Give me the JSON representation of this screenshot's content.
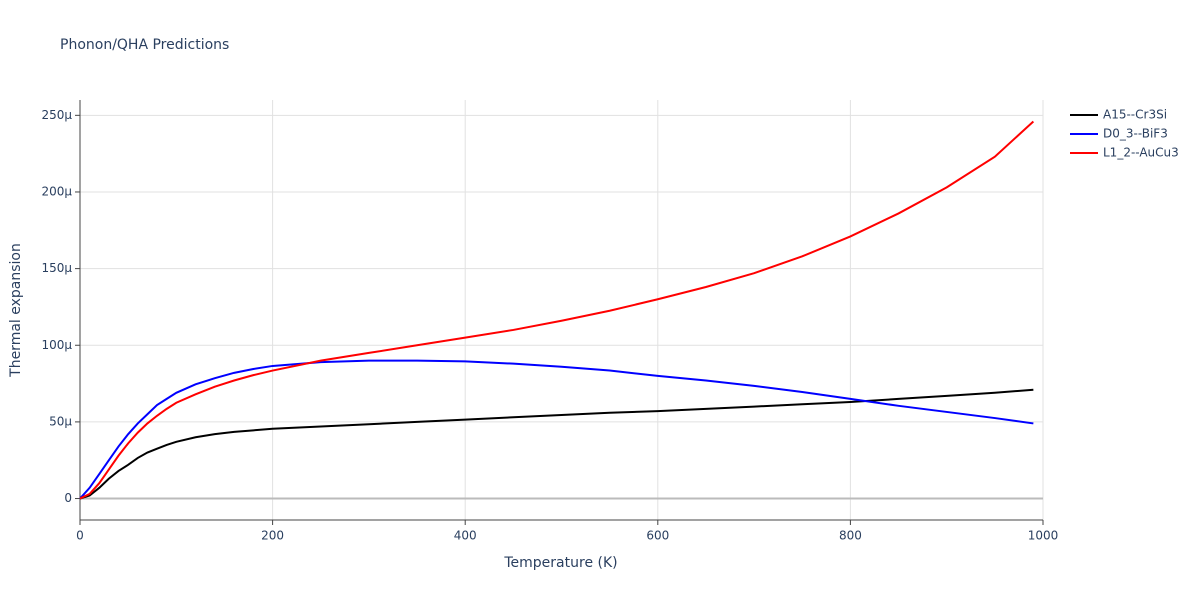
{
  "chart_data": {
    "type": "line",
    "title": "Phonon/QHA Predictions",
    "xlabel": "Temperature (K)",
    "ylabel": "Thermal expansion",
    "x": [
      0,
      10,
      20,
      30,
      40,
      50,
      60,
      70,
      80,
      90,
      100,
      120,
      140,
      160,
      180,
      200,
      250,
      300,
      350,
      400,
      450,
      500,
      550,
      600,
      650,
      700,
      750,
      800,
      850,
      900,
      950,
      990
    ],
    "series": [
      {
        "name": "A15--Cr3Si",
        "color": "#000000",
        "values": [
          0.0,
          2e-06,
          7e-06,
          1.3e-05,
          1.8e-05,
          2.2e-05,
          2.65e-05,
          3e-05,
          3.25e-05,
          3.5e-05,
          3.7e-05,
          4e-05,
          4.2e-05,
          4.35e-05,
          4.45e-05,
          4.55e-05,
          4.7e-05,
          4.85e-05,
          5e-05,
          5.15e-05,
          5.3e-05,
          5.45e-05,
          5.6e-05,
          5.7e-05,
          5.85e-05,
          6e-05,
          6.15e-05,
          6.3e-05,
          6.5e-05,
          6.7e-05,
          6.9e-05,
          7.1e-05
        ]
      },
      {
        "name": "D0_3--BiF3",
        "color": "#0000ff",
        "values": [
          0.0,
          7e-06,
          1.6e-05,
          2.5e-05,
          3.4e-05,
          4.2e-05,
          4.9e-05,
          5.5e-05,
          6.1e-05,
          6.5e-05,
          6.9e-05,
          7.45e-05,
          7.85e-05,
          8.2e-05,
          8.45e-05,
          8.65e-05,
          8.9e-05,
          9e-05,
          9e-05,
          8.95e-05,
          8.8e-05,
          8.6e-05,
          8.35e-05,
          8e-05,
          7.7e-05,
          7.35e-05,
          6.95e-05,
          6.5e-05,
          6.05e-05,
          5.65e-05,
          5.25e-05,
          4.9e-05
        ]
      },
      {
        "name": "L1_2--AuCu3",
        "color": "#ff0000",
        "values": [
          0.0,
          3e-06,
          1e-05,
          1.9e-05,
          2.8e-05,
          3.6e-05,
          4.3e-05,
          4.9e-05,
          5.4e-05,
          5.85e-05,
          6.25e-05,
          6.8e-05,
          7.3e-05,
          7.7e-05,
          8.05e-05,
          8.35e-05,
          9e-05,
          9.5e-05,
          0.0001,
          0.000105,
          0.00011,
          0.000116,
          0.0001225,
          0.00013,
          0.000138,
          0.000147,
          0.000158,
          0.000171,
          0.000186,
          0.000203,
          0.000223,
          0.000246
        ]
      }
    ],
    "xlim": [
      0,
      1000
    ],
    "xticks": [
      0,
      200,
      400,
      600,
      800,
      1000
    ],
    "ylim": [
      -1.4e-05,
      0.00026
    ],
    "yticks": [
      0,
      {
        "value": 5e-05,
        "label": "50μ"
      },
      {
        "value": 0.0001,
        "label": "100μ"
      },
      {
        "value": 0.00015,
        "label": "150μ"
      },
      {
        "value": 0.0002,
        "label": "200μ"
      },
      {
        "value": 0.00025,
        "label": "250μ"
      }
    ],
    "grid": true,
    "legend": "right"
  }
}
